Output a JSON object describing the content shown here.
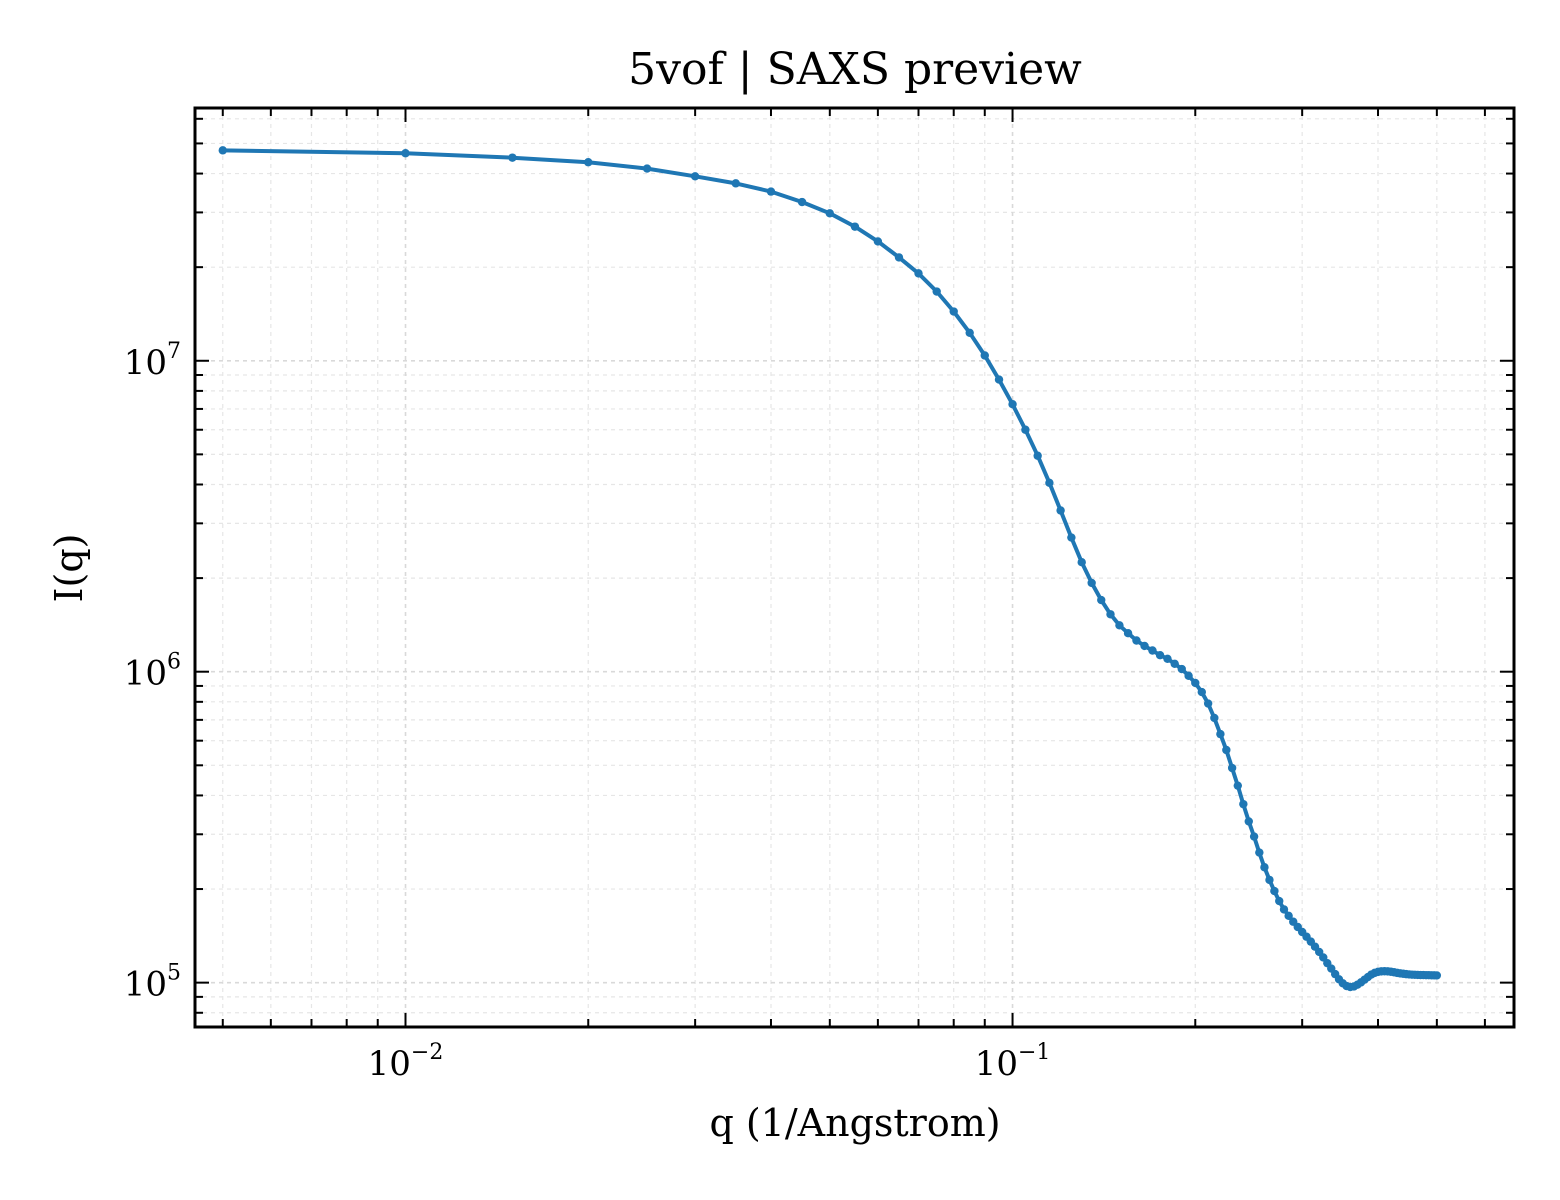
{
  "chart_data": {
    "type": "line",
    "title": "5vof | SAXS preview",
    "xlabel": "q (1/Angstrom)",
    "ylabel": "I(q)",
    "xscale": "log",
    "yscale": "log",
    "xlim": [
      0.0045,
      0.67
    ],
    "ylim": [
      72000,
      65000000
    ],
    "grid": true,
    "x_ticks": [
      {
        "value": 0.01,
        "base": "10",
        "exp": "−2"
      },
      {
        "value": 0.1,
        "base": "10",
        "exp": "−1"
      }
    ],
    "y_ticks": [
      {
        "value": 100000,
        "base": "10",
        "exp": "5"
      },
      {
        "value": 1000000,
        "base": "10",
        "exp": "6"
      },
      {
        "value": 10000000,
        "base": "10",
        "exp": "7"
      }
    ],
    "line_color": "#1f77b4",
    "series": [
      {
        "x": [
          0.005,
          0.01,
          0.015,
          0.02,
          0.025,
          0.03,
          0.035,
          0.04,
          0.045,
          0.05,
          0.055,
          0.06,
          0.065,
          0.07,
          0.075,
          0.08,
          0.085,
          0.09,
          0.095,
          0.1,
          0.105,
          0.11,
          0.115,
          0.12,
          0.125,
          0.13,
          0.135,
          0.14,
          0.145,
          0.15,
          0.155,
          0.16,
          0.165,
          0.17,
          0.175,
          0.18,
          0.185,
          0.19,
          0.195,
          0.2,
          0.205,
          0.21,
          0.215,
          0.22,
          0.225,
          0.23,
          0.235,
          0.24,
          0.245,
          0.25,
          0.255,
          0.26,
          0.265,
          0.27,
          0.275,
          0.28,
          0.285,
          0.29,
          0.295,
          0.3,
          0.305,
          0.31,
          0.315,
          0.32,
          0.325,
          0.33,
          0.335,
          0.34,
          0.345,
          0.35,
          0.355,
          0.36,
          0.365,
          0.37,
          0.375,
          0.38,
          0.385,
          0.39,
          0.395,
          0.4,
          0.405,
          0.41,
          0.415,
          0.42,
          0.425,
          0.43,
          0.435,
          0.44,
          0.445,
          0.45,
          0.455,
          0.46,
          0.465,
          0.47,
          0.475,
          0.48,
          0.485,
          0.49,
          0.495,
          0.5
        ],
        "y": [
          47500000,
          46500000,
          45000000,
          43500000,
          41500000,
          39200000,
          37200000,
          35000000,
          32400000,
          29800000,
          27000000,
          24200000,
          21500000,
          19100000,
          16700000,
          14400000,
          12300000,
          10400000,
          8700000,
          7250000,
          6000000,
          4950000,
          4050000,
          3300000,
          2700000,
          2250000,
          1930000,
          1700000,
          1530000,
          1410000,
          1330000,
          1260000,
          1210000,
          1170000,
          1130000,
          1100000,
          1060000,
          1020000,
          970000,
          920000,
          860000,
          790000,
          710000,
          630000,
          560000,
          490000,
          430000,
          375000,
          330000,
          295000,
          262000,
          235000,
          214000,
          197000,
          183000,
          172000,
          164000,
          157000,
          151000,
          145500,
          140500,
          135500,
          130500,
          125500,
          120500,
          115500,
          111000,
          106500,
          102500,
          99500,
          97500,
          96800,
          97200,
          98500,
          100200,
          102200,
          104200,
          106200,
          107500,
          108300,
          108700,
          108800,
          108700,
          108400,
          108000,
          107500,
          107100,
          106800,
          106500,
          106300,
          106100,
          106000,
          105900,
          105800,
          105750,
          105700,
          105650,
          105600,
          105550,
          105500
        ]
      }
    ]
  }
}
